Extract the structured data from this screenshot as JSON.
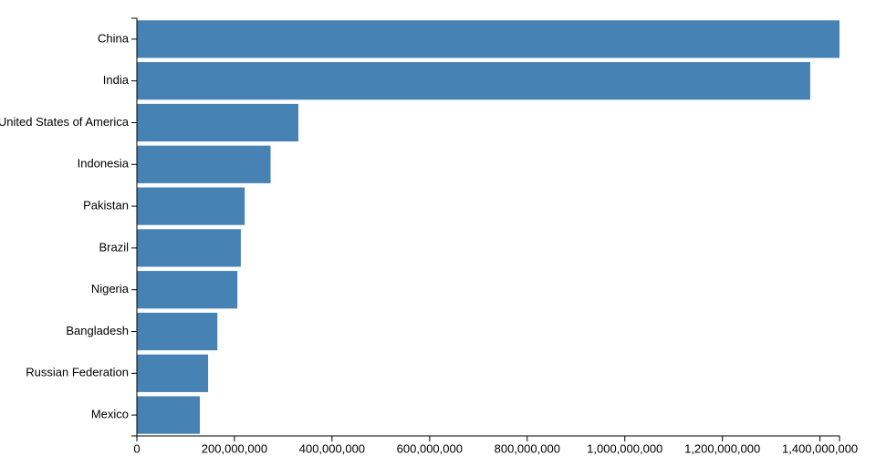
{
  "chart_data": {
    "type": "bar",
    "orientation": "horizontal",
    "color": "#4682b4",
    "categories": [
      "China",
      "India",
      "United States of America",
      "Indonesia",
      "Pakistan",
      "Brazil",
      "Nigeria",
      "Bangladesh",
      "Russian Federation",
      "Mexico"
    ],
    "values": [
      1440000000,
      1380000000,
      331000000,
      274000000,
      221000000,
      213000000,
      206000000,
      165000000,
      146000000,
      129000000
    ],
    "xlim": [
      0,
      1440000000
    ],
    "xticks": [
      0,
      {
        "value": 200000000,
        "label": "200,000,000"
      },
      {
        "value": 400000000,
        "label": "400,000,000"
      },
      {
        "value": 600000000,
        "label": "600,000,000"
      },
      {
        "value": 800000000,
        "label": "800,000,000"
      },
      {
        "value": 1000000000,
        "label": "1,000,000,000"
      },
      {
        "value": 1200000000,
        "label": "1,200,000,000"
      },
      {
        "value": 1400000000,
        "label": "1,400,000,000"
      }
    ],
    "grid": false
  }
}
